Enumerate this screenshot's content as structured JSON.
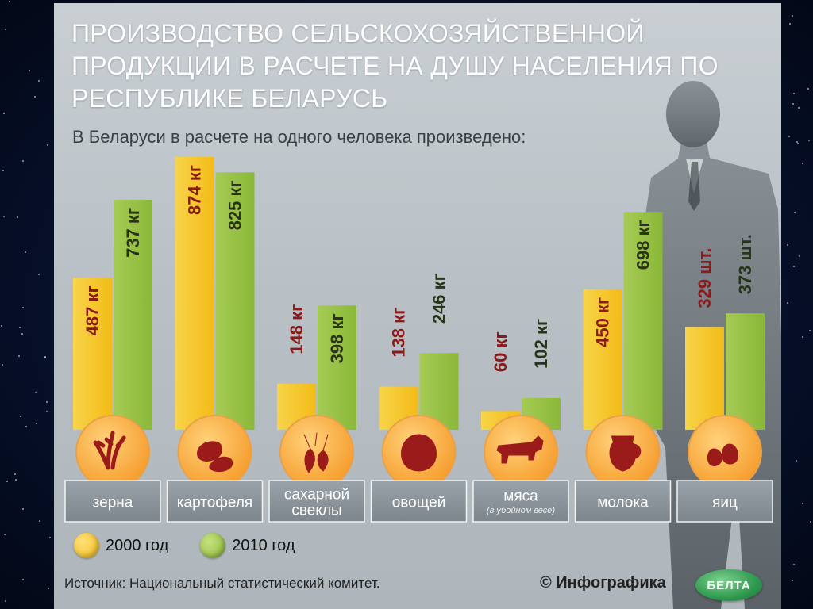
{
  "title": "ПРОИЗВОДСТВО СЕЛЬСКОХОЗЯЙСТВЕННОЙ\nПРОДУКЦИИ В РАСЧЕТЕ НА ДУШУ НАСЕЛЕНИЯ ПО\nРЕСПУБЛИКЕ БЕЛАРУСЬ",
  "subtitle": "В Беларуси в расчете на одного человека произведено:",
  "legend": {
    "y2000": "2000 год",
    "y2010": "2010 год"
  },
  "source": "Источник: Национальный статистический комитет.",
  "credit": "© Инфографика",
  "logo_text": "БЕЛТА",
  "colors": {
    "y2000": "#f3bb17",
    "y2010": "#8ab838",
    "label2000": "#8b1a1a",
    "label2010": "#2b3318",
    "icon": "#9b1b1b",
    "iconBg": "#f59a2a"
  },
  "chart_data": {
    "type": "bar",
    "categories": [
      {
        "label": "зерна",
        "note": "",
        "icon": "wheat-icon",
        "v2000": 487,
        "v2010": 737,
        "unit": "кг"
      },
      {
        "label": "картофеля",
        "note": "",
        "icon": "potato-icon",
        "v2000": 874,
        "v2010": 825,
        "unit": "кг"
      },
      {
        "label": "сахарной\nсвеклы",
        "note": "",
        "icon": "beet-icon",
        "v2000": 148,
        "v2010": 398,
        "unit": "кг"
      },
      {
        "label": "овощей",
        "note": "",
        "icon": "cabbage-icon",
        "v2000": 138,
        "v2010": 246,
        "unit": "кг"
      },
      {
        "label": "мяса",
        "note": "(в убойном весе)",
        "icon": "cow-icon",
        "v2000": 60,
        "v2010": 102,
        "unit": "кг"
      },
      {
        "label": "молока",
        "note": "",
        "icon": "milk-jug-icon",
        "v2000": 450,
        "v2010": 698,
        "unit": "кг"
      },
      {
        "label": "яиц",
        "note": "",
        "icon": "eggs-icon",
        "v2000": 329,
        "v2010": 373,
        "unit": "шт."
      }
    ],
    "series": [
      {
        "name": "2000 год",
        "key": "v2000"
      },
      {
        "name": "2010 год",
        "key": "v2010"
      }
    ]
  }
}
